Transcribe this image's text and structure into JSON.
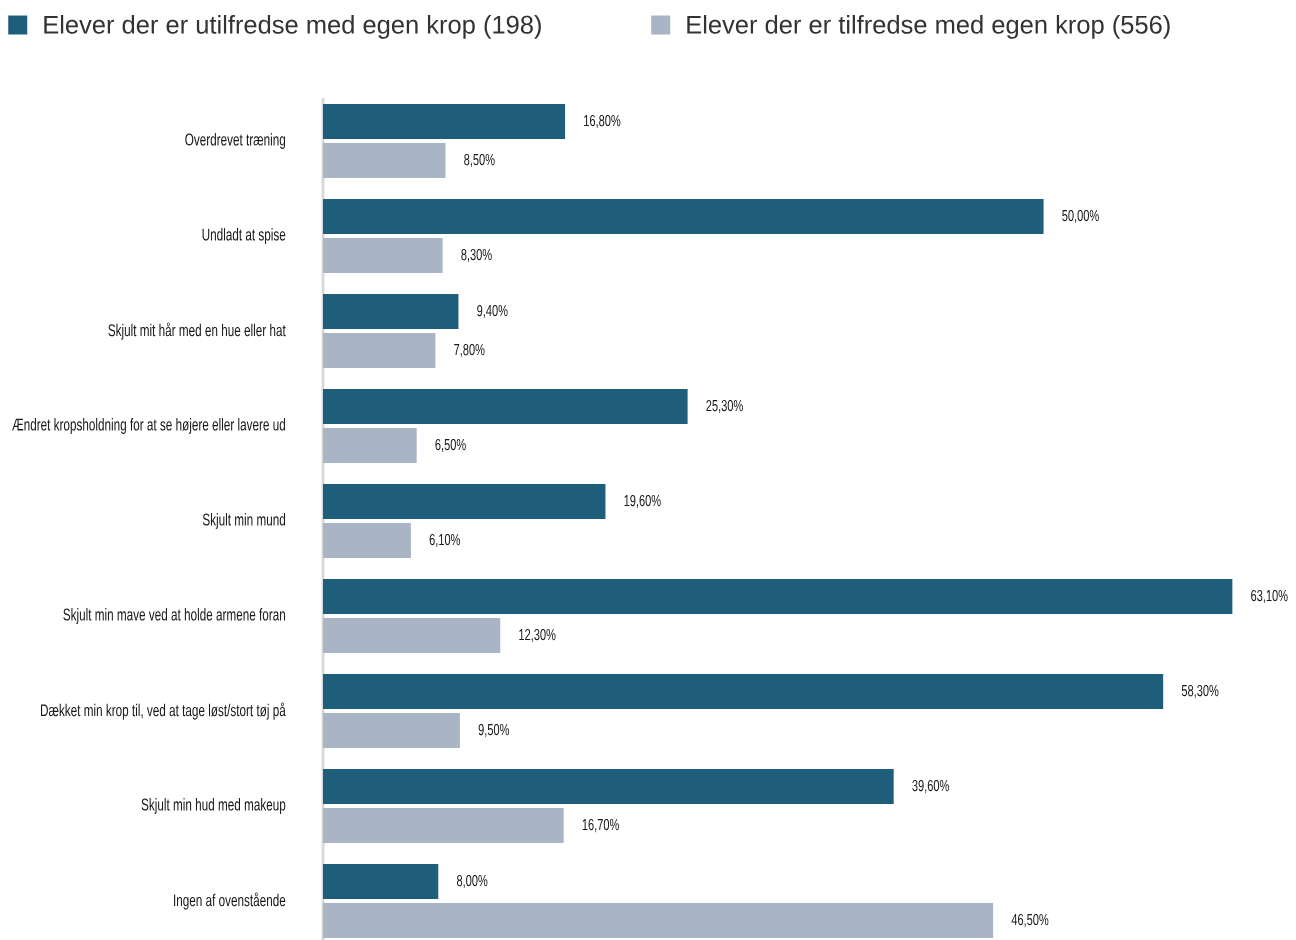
{
  "chart_data": {
    "type": "bar",
    "orientation": "horizontal",
    "legend": "top",
    "categories": [
      "Overdrevet træning",
      "Undladt at spise",
      "Skjult mit hår med en hue eller hat",
      "Ændret kropsholdning for at se højere eller lavere ud",
      "Skjult min mund",
      "Skjult min mave ved at holde armene foran",
      "Dækket min krop til, ved at tage løst/stort tøj på",
      "Skjult min hud med makeup",
      "Ingen af ovenstående"
    ],
    "series": [
      {
        "name": "Elever der er utilfredse med egen krop (198)",
        "color": "#1f5e7b",
        "values": [
          16.8,
          50.0,
          9.4,
          25.3,
          19.6,
          63.1,
          58.3,
          39.6,
          8.0
        ],
        "value_labels": [
          "16,80%",
          "50,00%",
          "9,40%",
          "25,30%",
          "19,60%",
          "63,10%",
          "58,30%",
          "39,60%",
          "8,00%"
        ]
      },
      {
        "name": "Elever der er tilfredse med egen krop (556)",
        "color": "#a9b4c4",
        "values": [
          8.5,
          8.3,
          7.8,
          6.5,
          6.1,
          12.3,
          9.5,
          16.7,
          46.5
        ],
        "value_labels": [
          "8,50%",
          "8,30%",
          "7,80%",
          "6,50%",
          "6,10%",
          "12,30%",
          "9,50%",
          "16,70%",
          "46,50%"
        ]
      }
    ]
  }
}
